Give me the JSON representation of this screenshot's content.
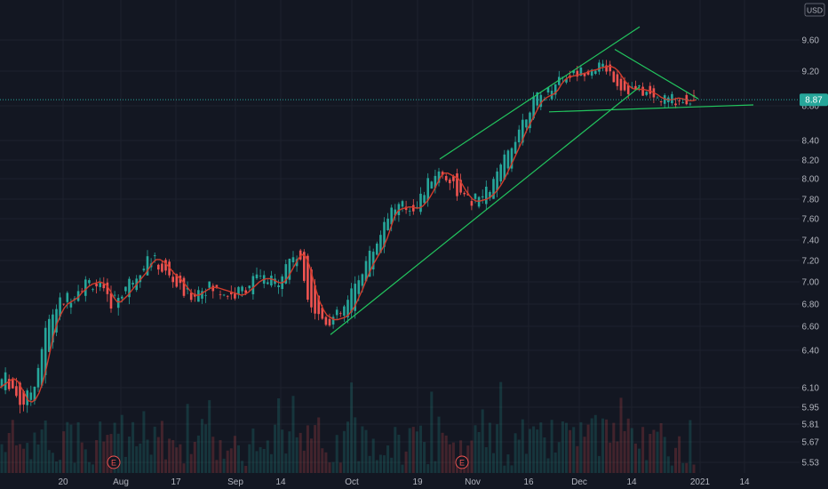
{
  "chart_data": {
    "type": "candlestick",
    "currency": "USD",
    "current_price": "8.87",
    "y_ticks": [
      "9.60",
      "9.20",
      "8.80",
      "8.40",
      "8.20",
      "8.00",
      "7.80",
      "7.60",
      "7.40",
      "7.20",
      "7.00",
      "6.80",
      "6.60",
      "6.40",
      "6.10",
      "5.95",
      "5.81",
      "5.67",
      "5.53"
    ],
    "y_tick_values": [
      9.6,
      9.2,
      8.8,
      8.4,
      8.2,
      8.0,
      7.8,
      7.6,
      7.4,
      7.2,
      7.0,
      6.8,
      6.6,
      6.4,
      6.1,
      5.95,
      5.81,
      5.67,
      5.53
    ],
    "x_ticks": [
      "20",
      "Aug",
      "17",
      "Sep",
      "14",
      "Oct",
      "19",
      "Nov",
      "16",
      "Dec",
      "14",
      "2021",
      "14"
    ],
    "earnings_markers": [
      "E",
      "E"
    ],
    "close_ma_path": [
      [
        0,
        6.1
      ],
      [
        4,
        6.12
      ],
      [
        8,
        6.14
      ],
      [
        12,
        6.16
      ],
      [
        16,
        6.17
      ],
      [
        20,
        6.15
      ],
      [
        24,
        6.1
      ],
      [
        28,
        6.05
      ],
      [
        32,
        6.0
      ],
      [
        36,
        5.99
      ],
      [
        40,
        6.01
      ],
      [
        44,
        6.06
      ],
      [
        48,
        6.14
      ],
      [
        52,
        6.25
      ],
      [
        56,
        6.38
      ],
      [
        60,
        6.52
      ],
      [
        64,
        6.62
      ],
      [
        68,
        6.7
      ],
      [
        72,
        6.76
      ],
      [
        76,
        6.8
      ],
      [
        80,
        6.82
      ],
      [
        84,
        6.84
      ],
      [
        88,
        6.86
      ],
      [
        92,
        6.9
      ],
      [
        96,
        6.93
      ],
      [
        100,
        6.96
      ],
      [
        104,
        6.98
      ],
      [
        108,
        6.99
      ],
      [
        112,
        7.0
      ],
      [
        116,
        6.99
      ],
      [
        120,
        6.97
      ],
      [
        124,
        6.92
      ],
      [
        128,
        6.86
      ],
      [
        132,
        6.82
      ],
      [
        136,
        6.82
      ],
      [
        140,
        6.85
      ],
      [
        144,
        6.88
      ],
      [
        148,
        6.92
      ],
      [
        152,
        6.96
      ],
      [
        156,
        7.0
      ],
      [
        160,
        7.04
      ],
      [
        164,
        7.08
      ],
      [
        168,
        7.13
      ],
      [
        172,
        7.18
      ],
      [
        176,
        7.21
      ],
      [
        180,
        7.21
      ],
      [
        184,
        7.19
      ],
      [
        188,
        7.16
      ],
      [
        192,
        7.12
      ],
      [
        196,
        7.08
      ],
      [
        200,
        7.05
      ],
      [
        204,
        7.02
      ],
      [
        208,
        6.98
      ],
      [
        212,
        6.94
      ],
      [
        216,
        6.9
      ],
      [
        220,
        6.88
      ],
      [
        224,
        6.88
      ],
      [
        228,
        6.9
      ],
      [
        232,
        6.92
      ],
      [
        236,
        6.94
      ],
      [
        240,
        6.95
      ],
      [
        244,
        6.95
      ],
      [
        248,
        6.94
      ],
      [
        252,
        6.93
      ],
      [
        256,
        6.92
      ],
      [
        260,
        6.91
      ],
      [
        264,
        6.9
      ],
      [
        268,
        6.89
      ],
      [
        272,
        6.88
      ],
      [
        276,
        6.89
      ],
      [
        280,
        6.91
      ],
      [
        284,
        6.94
      ],
      [
        288,
        6.97
      ],
      [
        292,
        7.0
      ],
      [
        296,
        7.02
      ],
      [
        300,
        7.03
      ],
      [
        304,
        7.03
      ],
      [
        308,
        7.02
      ],
      [
        312,
        7.0
      ],
      [
        316,
        6.99
      ],
      [
        320,
        7.0
      ],
      [
        324,
        7.04
      ],
      [
        328,
        7.1
      ],
      [
        332,
        7.16
      ],
      [
        336,
        7.22
      ],
      [
        340,
        7.26
      ],
      [
        344,
        7.24
      ],
      [
        348,
        7.16
      ],
      [
        352,
        7.04
      ],
      [
        356,
        6.92
      ],
      [
        360,
        6.82
      ],
      [
        364,
        6.75
      ],
      [
        368,
        6.7
      ],
      [
        372,
        6.68
      ],
      [
        376,
        6.66
      ],
      [
        380,
        6.66
      ],
      [
        384,
        6.67
      ],
      [
        388,
        6.68
      ],
      [
        392,
        6.7
      ],
      [
        396,
        6.74
      ],
      [
        400,
        6.79
      ],
      [
        404,
        6.86
      ],
      [
        408,
        6.93
      ],
      [
        412,
        7.01
      ],
      [
        416,
        7.09
      ],
      [
        420,
        7.16
      ],
      [
        424,
        7.22
      ],
      [
        428,
        7.28
      ],
      [
        432,
        7.34
      ],
      [
        436,
        7.42
      ],
      [
        440,
        7.52
      ],
      [
        444,
        7.62
      ],
      [
        448,
        7.68
      ],
      [
        452,
        7.7
      ],
      [
        456,
        7.71
      ],
      [
        460,
        7.72
      ],
      [
        464,
        7.72
      ],
      [
        468,
        7.71
      ],
      [
        472,
        7.71
      ],
      [
        476,
        7.73
      ],
      [
        480,
        7.77
      ],
      [
        484,
        7.82
      ],
      [
        488,
        7.88
      ],
      [
        492,
        7.95
      ],
      [
        496,
        8.02
      ],
      [
        500,
        8.06
      ],
      [
        504,
        8.06
      ],
      [
        508,
        8.04
      ],
      [
        512,
        8.02
      ],
      [
        516,
        8.0
      ],
      [
        520,
        7.95
      ],
      [
        524,
        7.89
      ],
      [
        528,
        7.84
      ],
      [
        532,
        7.8
      ],
      [
        536,
        7.78
      ],
      [
        540,
        7.78
      ],
      [
        544,
        7.79
      ],
      [
        548,
        7.8
      ],
      [
        552,
        7.82
      ],
      [
        556,
        7.85
      ],
      [
        560,
        7.89
      ],
      [
        564,
        7.94
      ],
      [
        568,
        8.0
      ],
      [
        572,
        8.08
      ],
      [
        576,
        8.16
      ],
      [
        580,
        8.24
      ],
      [
        584,
        8.32
      ],
      [
        588,
        8.4
      ],
      [
        592,
        8.5
      ],
      [
        596,
        8.58
      ],
      [
        600,
        8.66
      ],
      [
        604,
        8.74
      ],
      [
        608,
        8.82
      ],
      [
        612,
        8.87
      ],
      [
        616,
        8.9
      ],
      [
        620,
        8.92
      ],
      [
        624,
        8.94
      ],
      [
        628,
        8.98
      ],
      [
        632,
        9.05
      ],
      [
        636,
        9.1
      ],
      [
        640,
        9.13
      ],
      [
        644,
        9.14
      ],
      [
        648,
        9.15
      ],
      [
        652,
        9.16
      ],
      [
        656,
        9.17
      ],
      [
        660,
        9.18
      ],
      [
        664,
        9.2
      ],
      [
        668,
        9.21
      ],
      [
        672,
        9.22
      ],
      [
        676,
        9.24
      ],
      [
        680,
        9.25
      ],
      [
        684,
        9.26
      ],
      [
        688,
        9.26
      ],
      [
        692,
        9.24
      ],
      [
        696,
        9.2
      ],
      [
        700,
        9.14
      ],
      [
        704,
        9.08
      ],
      [
        708,
        9.03
      ],
      [
        712,
        9.0
      ],
      [
        716,
        8.99
      ],
      [
        720,
        8.99
      ],
      [
        724,
        8.99
      ],
      [
        728,
        8.98
      ],
      [
        732,
        8.97
      ],
      [
        736,
        8.95
      ],
      [
        740,
        8.93
      ],
      [
        744,
        8.9
      ],
      [
        748,
        8.88
      ],
      [
        752,
        8.87
      ],
      [
        756,
        8.87
      ],
      [
        760,
        8.88
      ],
      [
        764,
        8.89
      ],
      [
        768,
        8.88
      ],
      [
        772,
        8.87
      ],
      [
        776,
        8.86
      ],
      [
        780,
        8.86
      ],
      [
        784,
        8.87
      ]
    ],
    "trendlines": [
      {
        "name": "channel-upper",
        "from": [
          495,
          8.21
        ],
        "to": [
          720,
          9.77
        ]
      },
      {
        "name": "channel-lower",
        "from": [
          372,
          6.53
        ],
        "to": [
          720,
          9.02
        ]
      },
      {
        "name": "triangle-upper",
        "from": [
          692,
          9.48
        ],
        "to": [
          786,
          8.88
        ]
      },
      {
        "name": "triangle-lower",
        "from": [
          618,
          8.73
        ],
        "to": [
          848,
          8.81
        ]
      }
    ],
    "current_price_line": 8.87
  }
}
